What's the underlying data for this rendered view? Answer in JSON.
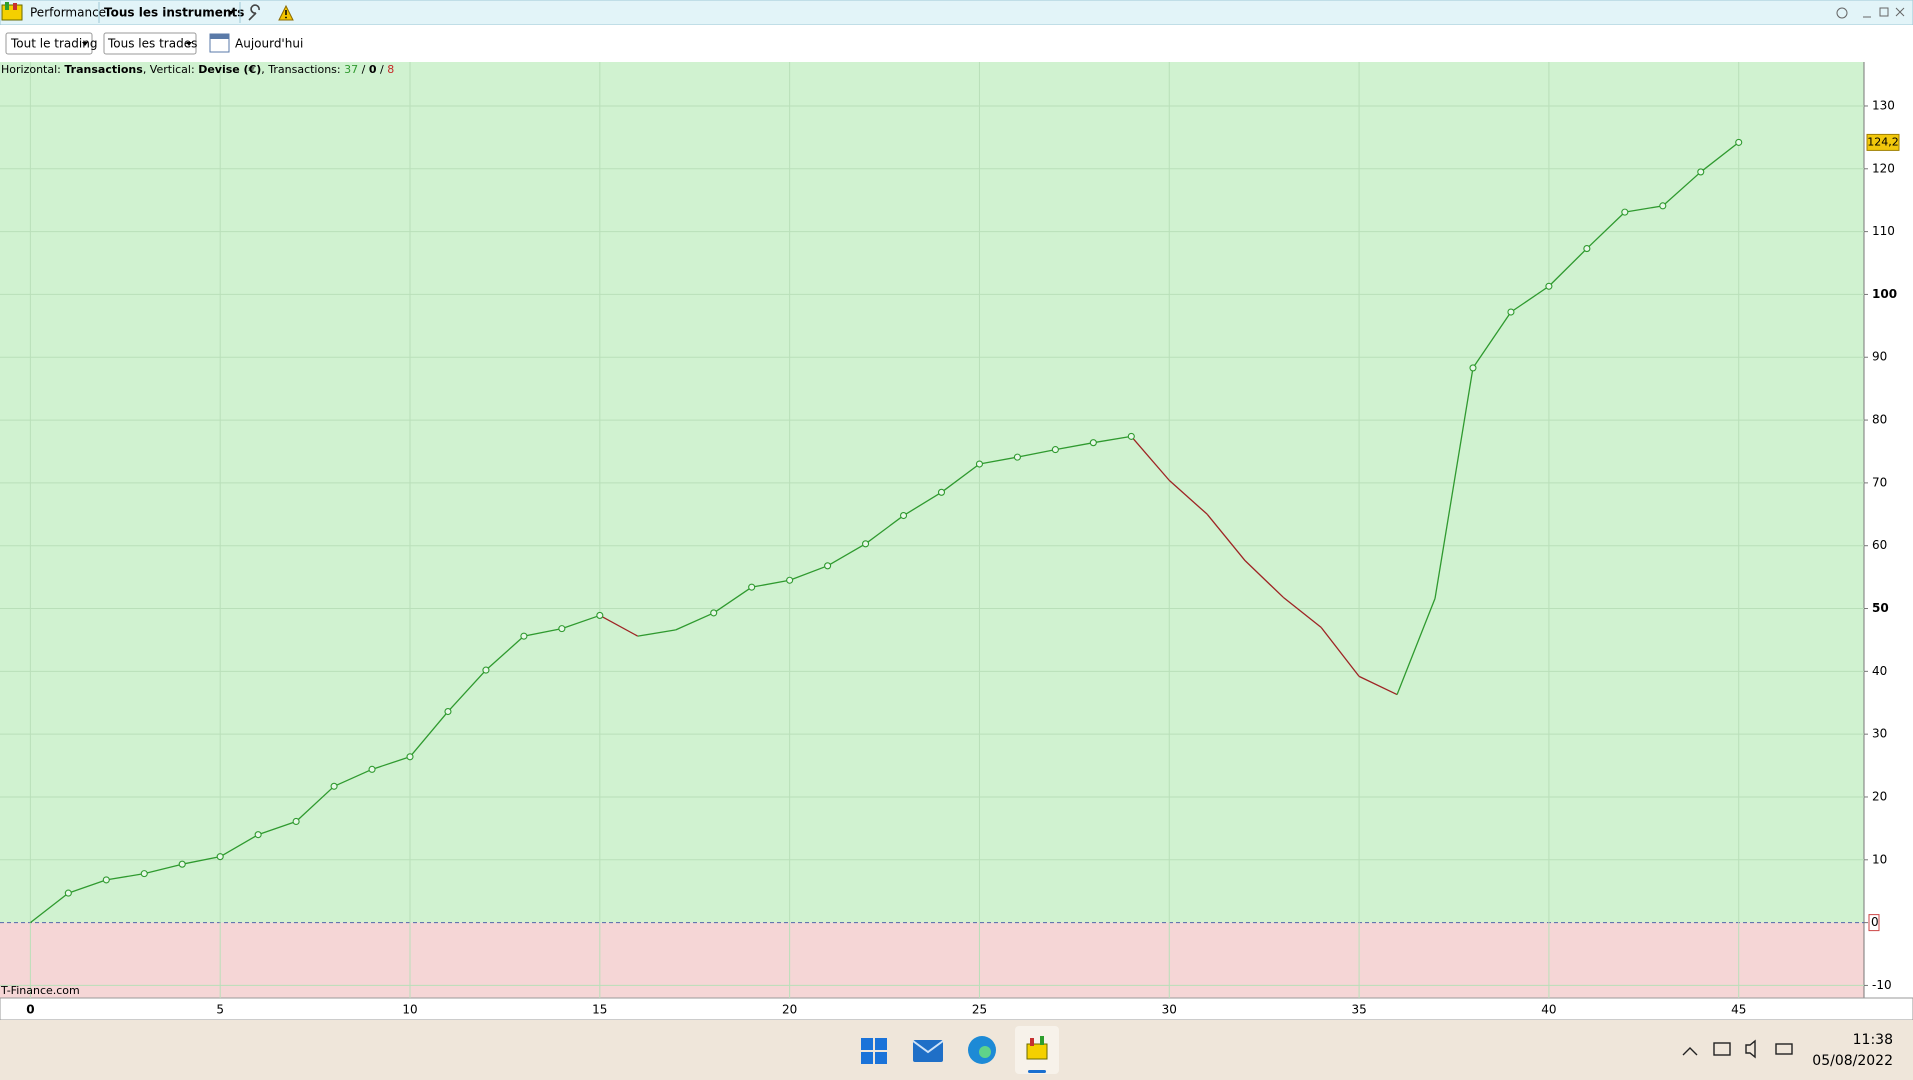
{
  "toolbar": {
    "title": "Performance",
    "instruments": "Tous les instruments",
    "trading_filter": "Tout le trading",
    "trades_filter": "Tous les trades",
    "period": "Aujourd'hui"
  },
  "chart_data": {
    "type": "line",
    "subtitle_parts": [
      "Horizontal: ",
      "Transactions",
      ", Vertical: ",
      "Devise (€)",
      ", Transactions: ",
      "37",
      " / ",
      "0",
      " / ",
      "8"
    ],
    "watermark": "T-Finance.com",
    "xlim": [
      -0.8,
      48.3
    ],
    "xticks": [
      0,
      5,
      10,
      15,
      20,
      25,
      30,
      35,
      40,
      45
    ],
    "ylim": [
      -12,
      137
    ],
    "yticks": [
      -10,
      0,
      10,
      20,
      30,
      40,
      50,
      60,
      70,
      80,
      90,
      100,
      110,
      120,
      130
    ],
    "grid": true,
    "series": [
      {
        "color": "#2f9a2f",
        "down_color": "#9e2424",
        "x": [
          0,
          1,
          2,
          3,
          4,
          5,
          6,
          7,
          8,
          9,
          10,
          11,
          12,
          13,
          14,
          15,
          16,
          17,
          18,
          19,
          20,
          21,
          22,
          23,
          24,
          25,
          26,
          27,
          28,
          29,
          30,
          31,
          32,
          33,
          34,
          35,
          36,
          37,
          38,
          39,
          40,
          41,
          42,
          43,
          44,
          45
        ],
        "values": [
          0,
          4.7,
          6.8,
          7.8,
          9.3,
          10.5,
          14.0,
          16.1,
          21.7,
          24.4,
          26.4,
          33.6,
          40.2,
          45.6,
          46.8,
          48.9,
          45.6,
          46.6,
          49.3,
          53.4,
          54.5,
          56.8,
          60.3,
          64.8,
          68.5,
          73.0,
          74.1,
          75.3,
          76.4,
          77.4,
          70.4,
          65.0,
          57.6,
          51.8,
          47.0,
          39.2,
          36.3,
          51.6,
          88.3,
          97.2,
          101.3,
          107.3,
          113.1,
          114.1,
          119.5,
          124.2
        ],
        "value_labels": [
          null,
          null,
          null,
          null,
          null,
          null,
          null,
          null,
          null,
          null,
          null,
          null,
          null,
          null,
          null,
          null,
          null,
          null,
          null,
          null,
          null,
          null,
          null,
          null,
          null,
          null,
          null,
          null,
          null,
          null,
          null,
          null,
          null,
          null,
          null,
          null,
          null,
          null,
          null,
          null,
          null,
          null,
          null,
          null,
          null,
          "124,2"
        ]
      }
    ]
  },
  "taskbar": {
    "time": "11:38",
    "date": "05/08/2022"
  }
}
